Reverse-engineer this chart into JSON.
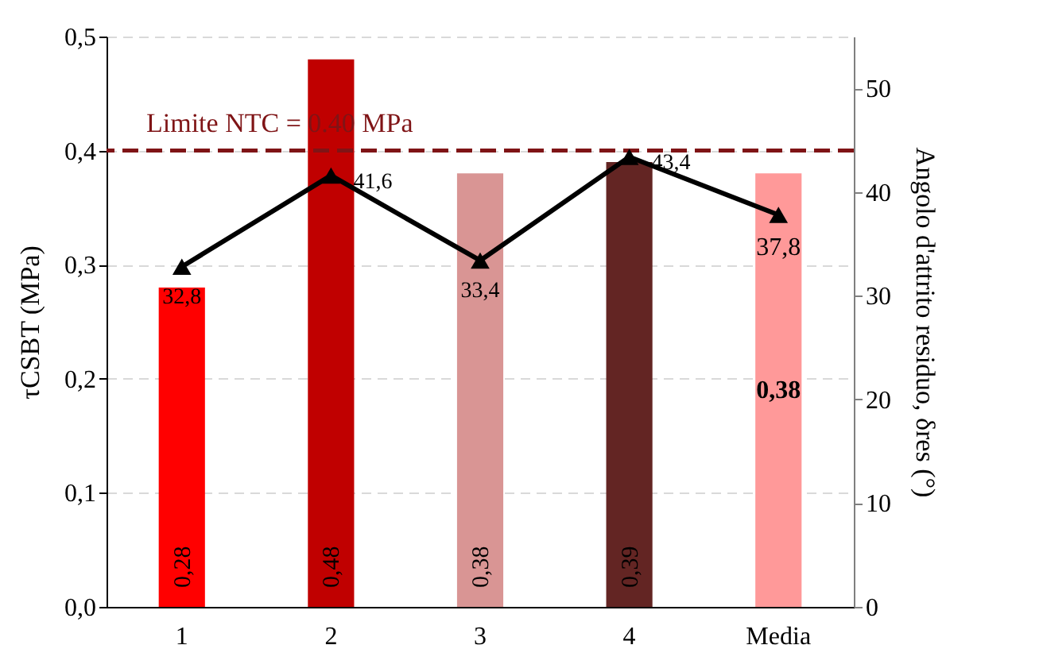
{
  "chart_data": {
    "type": "bar",
    "categories": [
      "1",
      "2",
      "3",
      "4",
      "Media"
    ],
    "values": [
      0.28,
      0.48,
      0.38,
      0.39,
      0.38
    ],
    "colors": [
      "#ff0000",
      "#c00000",
      "#d99594",
      "#632523",
      "#ff9999"
    ],
    "value_labels": [
      "0,28",
      "0,48",
      "0,38",
      "0,39",
      "0,38"
    ],
    "series": [
      {
        "type": "line",
        "axis": "y2",
        "color": "#000000",
        "values": [
          32.8,
          41.6,
          33.4,
          43.4,
          37.8
        ],
        "value_labels": [
          "32,8",
          "41,6",
          "33,4",
          "43,4",
          "37,8"
        ]
      }
    ],
    "ylabel": "τCSBT (MPa)",
    "y2label": "Angolo d'attrito residuo, δres (°)",
    "ylim": [
      0,
      0.5
    ],
    "yticks": [
      {
        "value": 0,
        "label": "0,0"
      },
      {
        "value": 0.1,
        "label": "0,1"
      },
      {
        "value": 0.2,
        "label": "0,2"
      },
      {
        "value": 0.3,
        "label": "0,3"
      },
      {
        "value": 0.4,
        "label": "0,4"
      },
      {
        "value": 0.5,
        "label": "0,5"
      }
    ],
    "y2lim": [
      0,
      55
    ],
    "y2ticks": [
      0,
      10,
      20,
      30,
      40,
      50
    ],
    "ref_lines": [
      {
        "axis": "y",
        "value": 0.4,
        "label": "Limite  NTC = 0.40 MPa",
        "color": "#7f1416",
        "line_style": "dashed"
      }
    ],
    "grid": "y",
    "marker": "triangle",
    "line_style": "solid"
  }
}
